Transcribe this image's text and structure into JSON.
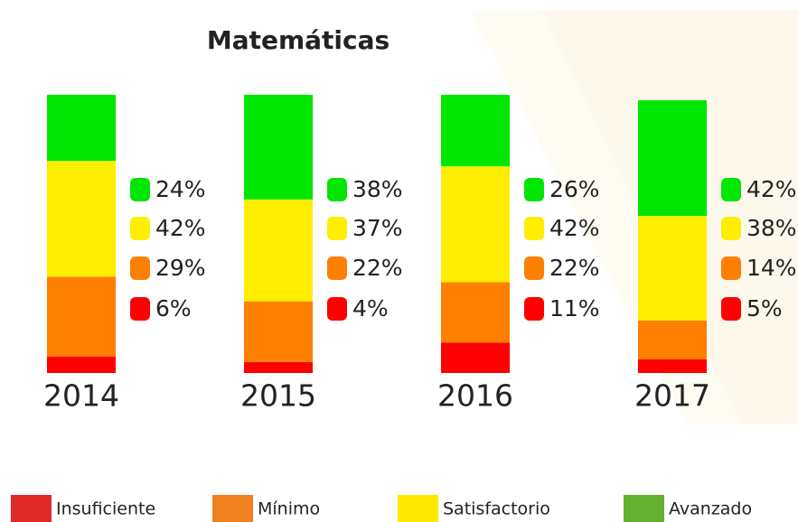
{
  "chart_data": {
    "type": "bar",
    "stacked": true,
    "title": "Matemáticas",
    "categories": [
      "2014",
      "2015",
      "2016",
      "2017"
    ],
    "series": [
      {
        "name": "Insuficiente",
        "color": "#ff0000",
        "legend_color": "#e02a2a",
        "values": [
          6,
          4,
          11,
          5
        ],
        "value_labels": [
          "6%",
          "4%",
          "11%",
          "5%"
        ]
      },
      {
        "name": "Mínimo",
        "color": "#ff7f00",
        "legend_color": "#f08020",
        "values": [
          29,
          22,
          22,
          14
        ],
        "value_labels": [
          "29%",
          "22%",
          "22%",
          "14%"
        ]
      },
      {
        "name": "Satisfactorio",
        "color": "#ffee00",
        "legend_color": "#ffe800",
        "values": [
          42,
          37,
          42,
          38
        ],
        "value_labels": [
          "42%",
          "37%",
          "42%",
          "38%"
        ]
      },
      {
        "name": "Avanzado",
        "color": "#00e600",
        "legend_color": "#66b030",
        "values": [
          24,
          38,
          26,
          42
        ],
        "value_labels": [
          "24%",
          "38%",
          "26%",
          "42%"
        ]
      }
    ]
  }
}
